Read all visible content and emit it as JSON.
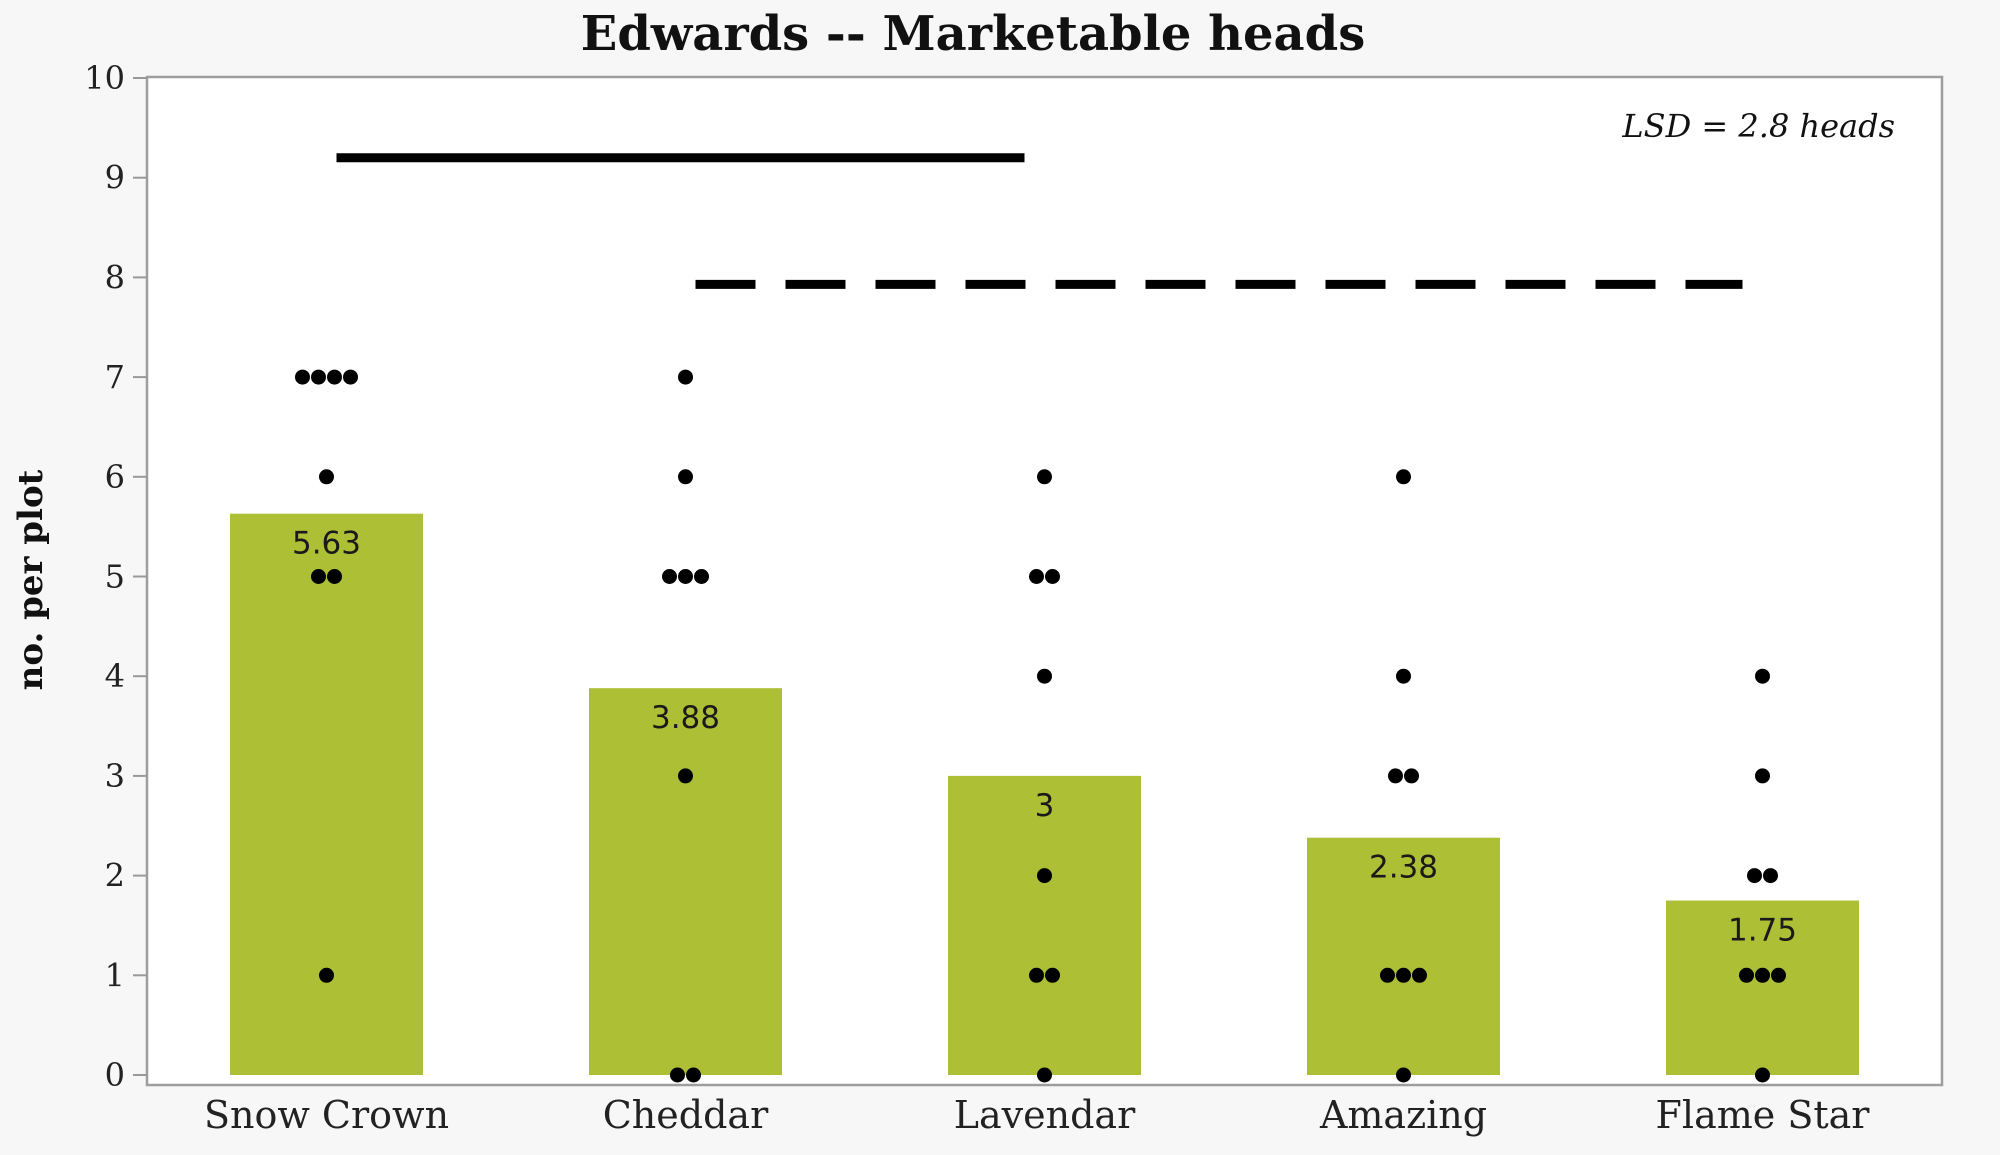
{
  "chart_data": {
    "type": "bar",
    "title": "Edwards -- Marketable heads",
    "ylabel": "no. per plot",
    "xlabel": "",
    "ylim": [
      0,
      10
    ],
    "yticks": [
      "0",
      "1",
      "2",
      "3",
      "4",
      "5",
      "6",
      "7",
      "8",
      "9",
      "10"
    ],
    "categories": [
      "Snow Crown",
      "Cheddar",
      "Lavendar",
      "Amazing",
      "Flame Star"
    ],
    "values": [
      5.63,
      3.88,
      3,
      2.38,
      1.75
    ],
    "value_labels": [
      "5.63",
      "3.88",
      "3",
      "2.38",
      "1.75"
    ],
    "points": [
      [
        7,
        7,
        7,
        7,
        6,
        5,
        5,
        1
      ],
      [
        7,
        6,
        5,
        5,
        5,
        3,
        0,
        0
      ],
      [
        6,
        5,
        5,
        4,
        2,
        1,
        1,
        0
      ],
      [
        6,
        4,
        3,
        3,
        1,
        1,
        1,
        0
      ],
      [
        4,
        3,
        2,
        2,
        1,
        1,
        1,
        0
      ]
    ],
    "significance_groups": [
      {
        "style": "solid",
        "from": "Snow Crown",
        "to": "Lavendar",
        "y": 9.2
      },
      {
        "style": "dashed",
        "from": "Cheddar",
        "to": "Flame Star",
        "y": 7.93
      }
    ],
    "annotation": "LSD = 2.8 heads",
    "colors": {
      "bar": "#adbf35",
      "point": "#000000",
      "axis": "#999999"
    },
    "grid": false
  }
}
